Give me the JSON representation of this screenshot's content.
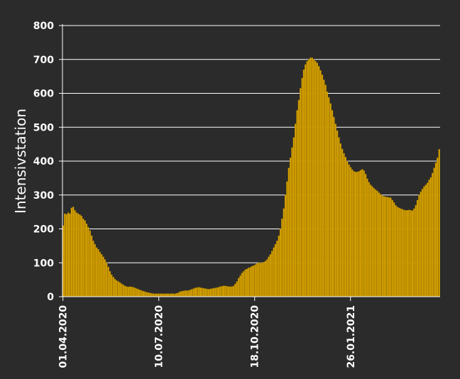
{
  "chart_data": {
    "type": "bar",
    "title": "",
    "xlabel": "",
    "ylabel": "Intensivstation",
    "ylim": [
      0,
      800
    ],
    "yticks": [
      0,
      100,
      200,
      300,
      400,
      500,
      600,
      700,
      800
    ],
    "xticks": [
      "01.04.2020",
      "10.07.2020",
      "18.10.2020",
      "26.01.2021"
    ],
    "x_start": "01.04.2020",
    "x_end": "29.04.2021",
    "grid": true,
    "legend": "none",
    "bar_color": "#e0a800",
    "bar_edge_color": "#8a6a00",
    "background": "#2b2b2b",
    "grid_color": "#ffffff",
    "text_color": "#ffffff",
    "series": [
      {
        "values": [
          210,
          245,
          243,
          248,
          245,
          262,
          265,
          255,
          248,
          245,
          242,
          238,
          230,
          225,
          215,
          205,
          195,
          180,
          165,
          155,
          145,
          140,
          132,
          125,
          118,
          110,
          100,
          88,
          75,
          65,
          58,
          52,
          48,
          45,
          42,
          38,
          35,
          32,
          30,
          29,
          30,
          29,
          28,
          26,
          24,
          22,
          20,
          18,
          16,
          15,
          13,
          12,
          11,
          10,
          9,
          9,
          9,
          9,
          9,
          9,
          9,
          9,
          9,
          9,
          9,
          9,
          9,
          9,
          10,
          12,
          15,
          16,
          17,
          18,
          18,
          18,
          20,
          22,
          24,
          26,
          27,
          28,
          27,
          26,
          25,
          24,
          23,
          22,
          23,
          24,
          25,
          26,
          27,
          28,
          30,
          31,
          32,
          32,
          31,
          30,
          30,
          30,
          32,
          38,
          45,
          55,
          62,
          70,
          75,
          80,
          82,
          85,
          87,
          90,
          92,
          95,
          98,
          100,
          100,
          100,
          102,
          105,
          110,
          118,
          125,
          135,
          145,
          155,
          165,
          180,
          200,
          230,
          260,
          300,
          340,
          380,
          410,
          440,
          470,
          510,
          550,
          580,
          615,
          645,
          670,
          685,
          695,
          700,
          705,
          705,
          700,
          695,
          690,
          680,
          668,
          655,
          640,
          625,
          605,
          588,
          570,
          550,
          530,
          510,
          490,
          470,
          452,
          436,
          423,
          412,
          400,
          390,
          382,
          375,
          370,
          368,
          368,
          370,
          373,
          376,
          372,
          362,
          348,
          338,
          330,
          325,
          320,
          316,
          312,
          307,
          302,
          298,
          296,
          295,
          294,
          293,
          292,
          285,
          278,
          270,
          265,
          262,
          260,
          258,
          256,
          255,
          255,
          256,
          255,
          254,
          260,
          270,
          285,
          300,
          310,
          318,
          325,
          330,
          336,
          345,
          352,
          365,
          380,
          395,
          410,
          435
        ]
      }
    ]
  }
}
